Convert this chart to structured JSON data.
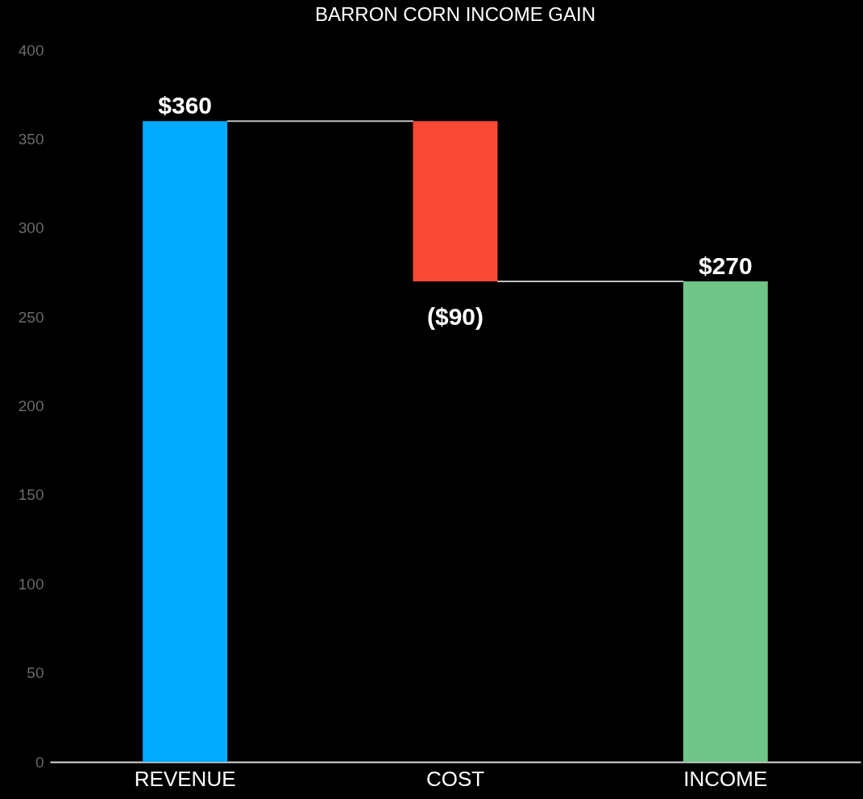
{
  "chart_data": {
    "type": "bar",
    "title": "BARRON CORN INCOME GAIN",
    "categories": [
      "REVENUE",
      "COST",
      "INCOME"
    ],
    "values": [
      360,
      -90,
      270
    ],
    "base": [
      0,
      360,
      0
    ],
    "colors": [
      "#00aaff",
      "#fa4935",
      "#6fc487"
    ],
    "value_labels": [
      "$360",
      "($90)",
      "$270"
    ],
    "ylim": [
      0,
      400
    ],
    "yticks": [
      0,
      50,
      100,
      150,
      200,
      250,
      300,
      350,
      400
    ]
  }
}
